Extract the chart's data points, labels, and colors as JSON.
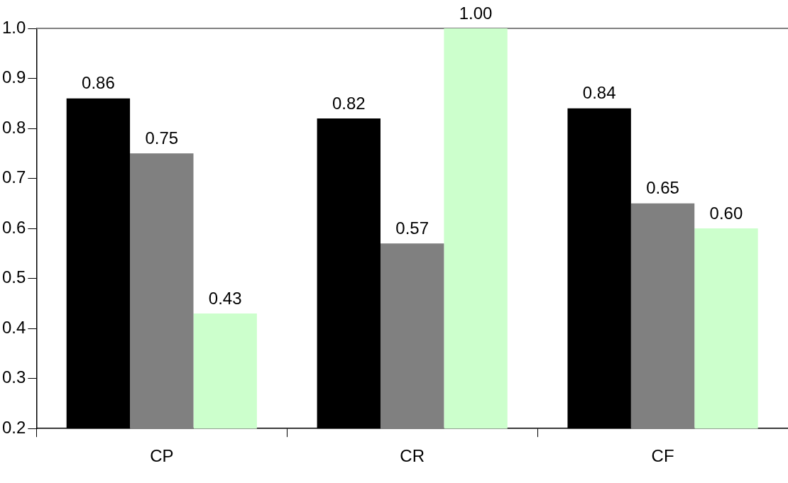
{
  "chart_data": {
    "type": "bar",
    "categories": [
      "CP",
      "CR",
      "CF"
    ],
    "series": [
      {
        "color": "#000000",
        "values": [
          0.86,
          0.82,
          0.84
        ],
        "value_labels": [
          "0.86",
          "0.82",
          "0.84"
        ]
      },
      {
        "color": "#808080",
        "values": [
          0.75,
          0.57,
          0.65
        ],
        "value_labels": [
          "0.75",
          "0.57",
          "0.65"
        ]
      },
      {
        "color": "#ccffcc",
        "values": [
          0.43,
          1.0,
          0.6
        ],
        "value_labels": [
          "0.43",
          "1.00",
          "0.60"
        ]
      }
    ],
    "ylim": [
      0.2,
      1.0
    ],
    "yticks": [
      {
        "value": 0.2,
        "label": "0.2"
      },
      {
        "value": 0.3,
        "label": "0.3"
      },
      {
        "value": 0.4,
        "label": "0.4"
      },
      {
        "value": 0.5,
        "label": "0.5"
      },
      {
        "value": 0.6,
        "label": "0.6"
      },
      {
        "value": 0.7,
        "label": "0.7"
      },
      {
        "value": 0.8,
        "label": "0.8"
      },
      {
        "value": 0.9,
        "label": "0.9"
      },
      {
        "value": 1.0,
        "label": "1.0"
      }
    ],
    "grid": false,
    "legend": false
  }
}
